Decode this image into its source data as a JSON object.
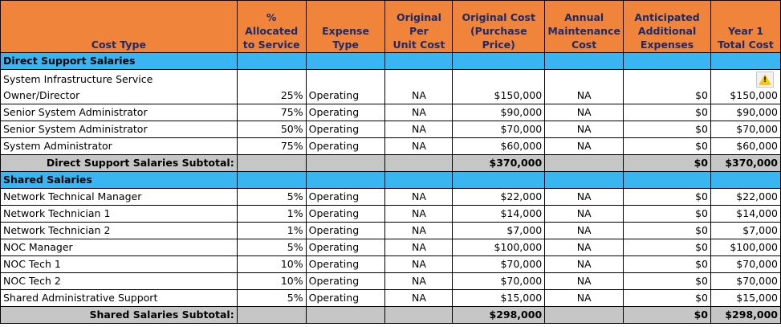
{
  "headers": {
    "cost_type": "Cost Type",
    "pct_line1": "% Allocated",
    "pct_line2": "to Service",
    "expense_type": "Expense Type",
    "orig_unit_line1": "Original Per",
    "orig_unit_line2": "Unit Cost",
    "orig_cost_line1": "Original Cost",
    "orig_cost_line2": "(Purchase Price)",
    "annual_line1": "Annual",
    "annual_line2": "Maintenance",
    "annual_line3": "Cost",
    "antic_line1": "Anticipated",
    "antic_line2": "Additional",
    "antic_line3": "Expenses",
    "year1_line1": "Year 1",
    "year1_line2": "Total Cost"
  },
  "sections": [
    {
      "title": "Direct Support Salaries",
      "rows": [
        {
          "name_line1": "System Infrastructure Service",
          "name": "Owner/Director",
          "pct": "25%",
          "expense": "Operating",
          "unit": "NA",
          "orig": "$150,000",
          "annual": "NA",
          "antic": "$0",
          "total": "$150,000",
          "warning": true
        },
        {
          "name": "Senior System Administrator",
          "pct": "75%",
          "expense": "Operating",
          "unit": "NA",
          "orig": "$90,000",
          "annual": "NA",
          "antic": "$0",
          "total": "$90,000"
        },
        {
          "name": "Senior System Administrator",
          "pct": "50%",
          "expense": "Operating",
          "unit": "NA",
          "orig": "$70,000",
          "annual": "NA",
          "antic": "$0",
          "total": "$70,000"
        },
        {
          "name": "System Administrator",
          "pct": "75%",
          "expense": "Operating",
          "unit": "NA",
          "orig": "$60,000",
          "annual": "NA",
          "antic": "$0",
          "total": "$60,000"
        }
      ],
      "subtotal": {
        "label": "Direct Support Salaries Subtotal:",
        "orig": "$370,000",
        "antic": "$0",
        "total": "$370,000"
      }
    },
    {
      "title": "Shared Salaries",
      "rows": [
        {
          "name": "Network Technical Manager",
          "pct": "5%",
          "expense": "Operating",
          "unit": "NA",
          "orig": "$22,000",
          "annual": "NA",
          "antic": "$0",
          "total": "$22,000"
        },
        {
          "name": "Network Technician 1",
          "pct": "1%",
          "expense": "Operating",
          "unit": "NA",
          "orig": "$14,000",
          "annual": "NA",
          "antic": "$0",
          "total": "$14,000"
        },
        {
          "name": "Network Technician 2",
          "pct": "1%",
          "expense": "Operating",
          "unit": "NA",
          "orig": "$7,000",
          "annual": "NA",
          "antic": "$0",
          "total": "$7,000"
        },
        {
          "name": "NOC Manager",
          "pct": "5%",
          "expense": "Operating",
          "unit": "NA",
          "orig": "$100,000",
          "annual": "NA",
          "antic": "$0",
          "total": "$100,000"
        },
        {
          "name": "NOC Tech 1",
          "pct": "10%",
          "expense": "Operating",
          "unit": "NA",
          "orig": "$70,000",
          "annual": "NA",
          "antic": "$0",
          "total": "$70,000"
        },
        {
          "name": "NOC Tech 2",
          "pct": "10%",
          "expense": "Operating",
          "unit": "NA",
          "orig": "$70,000",
          "annual": "NA",
          "antic": "$0",
          "total": "$70,000"
        },
        {
          "name": "Shared Administrative Support",
          "pct": "5%",
          "expense": "Operating",
          "unit": "NA",
          "orig": "$15,000",
          "annual": "NA",
          "antic": "$0",
          "total": "$15,000"
        }
      ],
      "subtotal": {
        "label": "Shared Salaries Subtotal:",
        "orig": "$298,000",
        "antic": "$0",
        "total": "$298,000"
      }
    }
  ],
  "colors": {
    "header_bg": "#f0843a",
    "section_bg": "#39b6f1",
    "subtotal_bg": "#c6c6c6",
    "header_text": "#1d2a6b"
  },
  "icons": {
    "warning": "warning-triangle-icon"
  }
}
